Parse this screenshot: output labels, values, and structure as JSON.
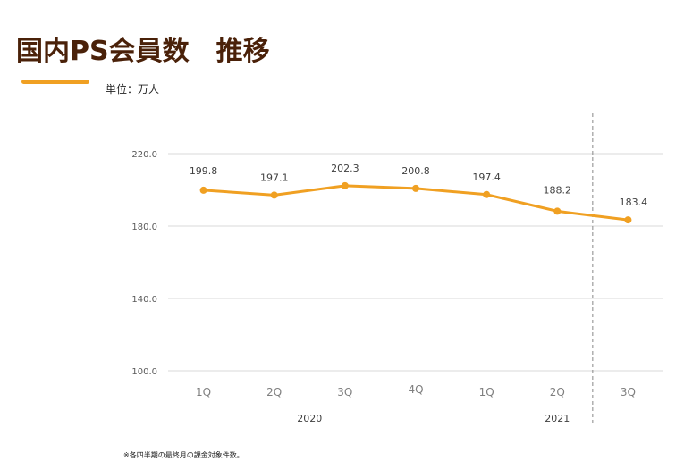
{
  "chart_data": {
    "type": "line",
    "title": "国内PS会員数　推移",
    "unit_label": "単位：万人",
    "categories": [
      "1Q",
      "2Q",
      "3Q",
      "4Q",
      "1Q",
      "2Q",
      "3Q"
    ],
    "year_labels": [
      {
        "label": "2020",
        "at_index": 1.5
      },
      {
        "label": "2021",
        "at_index": 5
      }
    ],
    "divider_after_index": 5.5,
    "series": [
      {
        "name": "国内PS会員数",
        "values": [
          199.8,
          197.1,
          202.3,
          200.8,
          197.4,
          188.2,
          183.4
        ],
        "color": "#f0a022"
      }
    ],
    "value_labels": [
      "199.8",
      "197.1",
      "202.3",
      "200.8",
      "197.4",
      "188.2",
      "183.4"
    ],
    "yticks": [
      "100.0",
      "140.0",
      "180.0",
      "220.0"
    ],
    "ylim": [
      100,
      220
    ],
    "grid": true,
    "note": "※各四半期の最終月の課金対象件数。"
  }
}
